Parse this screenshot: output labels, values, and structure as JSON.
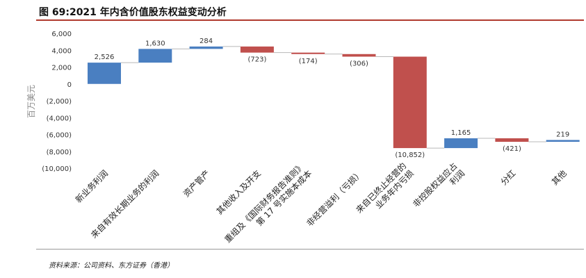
{
  "figure": {
    "title": "图 69:2021 年内含价值股东权益变动分析",
    "source": "资料来源：公司资料、东方证券（香港）"
  },
  "chart_data": {
    "type": "waterfall",
    "title": "图 69:2021 年内含价值股东权益变动分析",
    "ylabel": "百万美元",
    "ylim": [
      -10000,
      6000
    ],
    "yticks": [
      6000,
      4000,
      2000,
      0,
      -2000,
      -4000,
      -6000,
      -8000,
      -10000
    ],
    "ytick_labels": [
      "6,000",
      "4,000",
      "2,000",
      "0",
      "(2,000)",
      "(4,000)",
      "(6,000)",
      "(8,000)",
      "(10,000)"
    ],
    "categories": [
      "新业务利润",
      "来自有效长期业务的利润",
      "资产管产",
      "其他收入及开支",
      "重组及《国际财务报告准则》第 17 号实施本成本",
      "非经营溢利（亏损）",
      "来自已终止经营的业务年内亏损",
      "非控股权益应占利润",
      "分红",
      "其他"
    ],
    "category_lines": [
      [
        "新业务利润"
      ],
      [
        "来自有效长期业务的利润"
      ],
      [
        "资产管产"
      ],
      [
        "其他收入及开支"
      ],
      [
        "重组及《国际财务报告准则》",
        "第 17 号实施本成本"
      ],
      [
        "非经营溢利（亏损）"
      ],
      [
        "来自已终止经营的",
        "业务年内亏损"
      ],
      [
        "非控股权益应占",
        "利润"
      ],
      [
        "分红"
      ],
      [
        "其他"
      ]
    ],
    "values": [
      2526,
      1630,
      284,
      -723,
      -174,
      -306,
      -10852,
      1165,
      -421,
      219
    ],
    "labels": [
      "2,526",
      "1,630",
      "284",
      "(723)",
      "(174)",
      "(306)",
      "(10,852)",
      "1,165",
      "(421)",
      "219"
    ],
    "colors": {
      "increase": "#4a7fc1",
      "decrease": "#c0504d"
    }
  }
}
